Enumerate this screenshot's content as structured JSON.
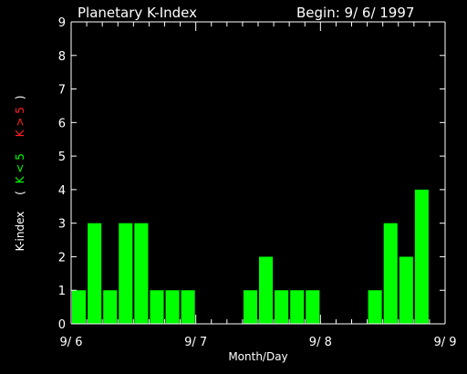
{
  "chart_data": {
    "type": "bar",
    "title": "Planetary K-Index",
    "subtitle": "Begin: 9/ 6/ 1997",
    "xlabel": "Month/Day",
    "ylabel": {
      "main": "K-index",
      "open_paren": "(",
      "green_part": "K < 5",
      "red_part": "K > 5",
      "close_paren": ")"
    },
    "ylim": [
      0,
      9
    ],
    "yticks": [
      "0",
      "1",
      "2",
      "3",
      "4",
      "5",
      "6",
      "7",
      "8",
      "9"
    ],
    "xticks": [
      {
        "label": "9/ 6",
        "index": 0
      },
      {
        "label": "9/ 7",
        "index": 8
      },
      {
        "label": "9/ 8",
        "index": 16
      },
      {
        "label": "9/ 9",
        "index": 24
      }
    ],
    "slots": 24,
    "values": [
      1,
      3,
      1,
      3,
      3,
      1,
      1,
      1,
      null,
      null,
      null,
      1,
      2,
      1,
      1,
      1,
      null,
      null,
      null,
      1,
      3,
      2,
      4,
      null
    ],
    "colors": {
      "background": "#000000",
      "axis": "#ffffff",
      "text": "#ffffff",
      "bar_low": "#00ff00",
      "label_green": "#00ff00",
      "label_red": "#ff2020"
    }
  }
}
